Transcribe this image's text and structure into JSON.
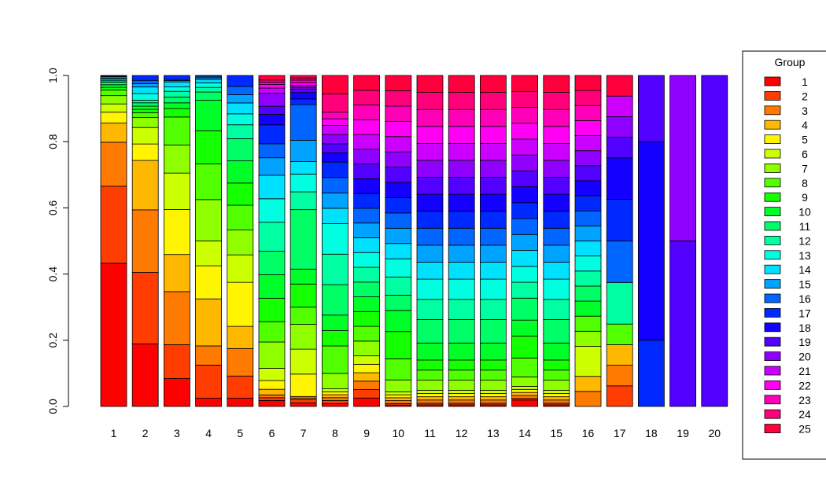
{
  "chart_data": {
    "type": "bar",
    "stacked": true,
    "title": "",
    "xlabel": "",
    "ylabel": "",
    "ylim": [
      0,
      1
    ],
    "yticks": [
      "0.0",
      "0.2",
      "0.4",
      "0.6",
      "0.8",
      "1.0"
    ],
    "categories": [
      "1",
      "2",
      "3",
      "4",
      "5",
      "6",
      "7",
      "8",
      "9",
      "10",
      "11",
      "12",
      "13",
      "14",
      "15",
      "16",
      "17",
      "18",
      "19",
      "20"
    ],
    "legend": {
      "title": "Group",
      "placement": "right",
      "entries": [
        "1",
        "2",
        "3",
        "4",
        "5",
        "6",
        "7",
        "8",
        "9",
        "10",
        "11",
        "12",
        "13",
        "14",
        "15",
        "16",
        "17",
        "18",
        "19",
        "20",
        "21",
        "22",
        "23",
        "24",
        "25"
      ]
    },
    "group_colors": [
      "#FF0000",
      "#FF3D00",
      "#FF7A00",
      "#FFB800",
      "#FFF500",
      "#CCFF00",
      "#8FFF00",
      "#52FF00",
      "#14FF00",
      "#00FF29",
      "#00FF66",
      "#00FFA3",
      "#00FFE0",
      "#00E0FF",
      "#00A3FF",
      "#0066FF",
      "#0029FF",
      "#1400FF",
      "#5200FF",
      "#8F00FF",
      "#CC00FF",
      "#FF00F5",
      "#FF00B8",
      "#FF007A",
      "#FF003D"
    ],
    "stacks": [
      [
        0.433,
        0.233,
        0.133,
        0.058,
        0.033,
        0.025,
        0.025,
        0.017,
        0.008,
        0.008,
        0.008,
        0.004,
        0.004,
        0.004,
        0.004,
        0.002,
        0.002
      ],
      [
        0.19,
        0.217,
        0.19,
        0.15,
        0.05,
        0.05,
        0.03,
        0.015,
        0.01,
        0.01,
        0.01,
        0.008,
        0.02,
        0.02,
        0.01,
        0.01,
        0.015
      ],
      [
        0.083,
        0.1,
        0.157,
        0.11,
        0.133,
        0.108,
        0.083,
        0.083,
        0.025,
        0.017,
        0.017,
        0.017,
        0.013,
        0.015,
        0.004,
        0.003,
        0.012
      ],
      [
        0.025,
        0.1,
        0.058,
        0.142,
        0.1,
        0.075,
        0.125,
        0.108,
        0.1,
        0.092,
        0.025,
        0.014,
        0.014,
        0.01,
        0.005,
        0.005,
        0.002
      ],
      [
        0.025,
        0.067,
        0.083,
        0.067,
        0.133,
        0.083,
        0.075,
        0.075,
        0.067,
        0.067,
        0.067,
        0.042,
        0.033,
        0.033,
        0.025,
        0.025,
        0.033
      ],
      [
        0.017,
        0.008,
        0.008,
        0.016,
        0.025,
        0.035,
        0.075,
        0.058,
        0.067,
        0.067,
        0.067,
        0.083,
        0.067,
        0.067,
        0.05,
        0.04,
        0.054,
        0.03,
        0.023,
        0.037,
        0.015,
        0.01,
        0.007,
        0.006,
        0.013
      ],
      [
        0.01,
        0.01,
        0.004,
        0.004,
        0.063,
        0.07,
        0.07,
        0.048,
        0.065,
        0.042,
        0.167,
        0.05,
        0.05,
        0.035,
        0.06,
        0.1,
        0.016,
        0.018,
        0.01,
        0.005,
        0.005,
        0.008,
        0.007,
        0.006,
        0.007
      ],
      [
        0.008,
        0.008,
        0.008,
        0.008,
        0.008,
        0.008,
        0.042,
        0.075,
        0.042,
        0.042,
        0.083,
        0.083,
        0.083,
        0.042,
        0.042,
        0.042,
        0.042,
        0.025,
        0.025,
        0.025,
        0.025,
        0.018,
        0.018,
        0.05,
        0.05
      ],
      [
        0.012,
        0.012,
        0.012,
        0.012,
        0.012,
        0.012,
        0.021,
        0.021,
        0.021,
        0.021,
        0.021,
        0.021,
        0.021,
        0.021,
        0.021,
        0.021,
        0.021,
        0.021,
        0.021,
        0.021,
        0.021,
        0.021,
        0.021,
        0.021,
        0.021
      ],
      [
        0.004,
        0.004,
        0.008,
        0.008,
        0.008,
        0.008,
        0.033,
        0.058,
        0.075,
        0.058,
        0.042,
        0.05,
        0.05,
        0.042,
        0.042,
        0.042,
        0.042,
        0.042,
        0.042,
        0.042,
        0.042,
        0.042,
        0.042,
        0.042,
        0.042
      ],
      [
        0.004,
        0.004,
        0.008,
        0.008,
        0.008,
        0.008,
        0.025,
        0.025,
        0.025,
        0.042,
        0.058,
        0.05,
        0.05,
        0.042,
        0.042,
        0.042,
        0.042,
        0.042,
        0.042,
        0.042,
        0.042,
        0.042,
        0.042,
        0.042,
        0.042
      ],
      [
        0.004,
        0.004,
        0.008,
        0.008,
        0.008,
        0.008,
        0.025,
        0.025,
        0.025,
        0.042,
        0.058,
        0.05,
        0.05,
        0.042,
        0.042,
        0.042,
        0.042,
        0.042,
        0.042,
        0.042,
        0.042,
        0.042,
        0.042,
        0.042,
        0.042
      ],
      [
        0.004,
        0.004,
        0.008,
        0.008,
        0.008,
        0.008,
        0.025,
        0.025,
        0.025,
        0.042,
        0.058,
        0.05,
        0.05,
        0.042,
        0.042,
        0.042,
        0.042,
        0.042,
        0.042,
        0.042,
        0.042,
        0.042,
        0.042,
        0.042,
        0.042
      ],
      [
        0.017,
        0.004,
        0.008,
        0.008,
        0.008,
        0.008,
        0.025,
        0.05,
        0.058,
        0.042,
        0.058,
        0.042,
        0.042,
        0.042,
        0.042,
        0.042,
        0.042,
        0.042,
        0.042,
        0.042,
        0.042,
        0.042,
        0.042,
        0.042,
        0.042
      ],
      [
        0.004,
        0.004,
        0.008,
        0.008,
        0.008,
        0.008,
        0.025,
        0.025,
        0.025,
        0.042,
        0.058,
        0.05,
        0.05,
        0.042,
        0.042,
        0.042,
        0.042,
        0.042,
        0.042,
        0.042,
        0.042,
        0.042,
        0.042,
        0.042,
        0.042
      ],
      [
        0,
        0,
        0.03,
        0.03,
        0,
        0.06,
        0.03,
        0.03,
        0,
        0.03,
        0.03,
        0.03,
        0.03,
        0.03,
        0.03,
        0.03,
        0.03,
        0.03,
        0.03,
        0.03,
        0.03,
        0.03,
        0.03,
        0.03,
        0.03
      ],
      [
        0,
        0.062,
        0.062,
        0.062,
        0,
        0,
        0,
        0.062,
        0,
        0,
        0,
        0.125,
        0,
        0,
        0,
        0.125,
        0.125,
        0.125,
        0.062,
        0.062,
        0.062,
        0,
        0,
        0,
        0.062
      ],
      [
        0,
        0,
        0,
        0,
        0,
        0,
        0,
        0,
        0,
        0,
        0,
        0,
        0,
        0,
        0,
        0,
        0.2,
        0.6,
        0.2,
        0,
        0,
        0,
        0,
        0,
        0
      ],
      [
        0,
        0,
        0,
        0,
        0,
        0,
        0,
        0,
        0,
        0,
        0,
        0,
        0,
        0,
        0,
        0,
        0,
        0,
        0.5,
        0.5,
        0,
        0,
        0,
        0,
        0
      ],
      [
        0,
        0,
        0,
        0,
        0,
        0,
        0,
        0,
        0,
        0,
        0,
        0,
        0,
        0,
        0,
        0,
        0,
        0,
        1.0,
        0,
        0,
        0,
        0,
        0,
        0
      ]
    ]
  }
}
